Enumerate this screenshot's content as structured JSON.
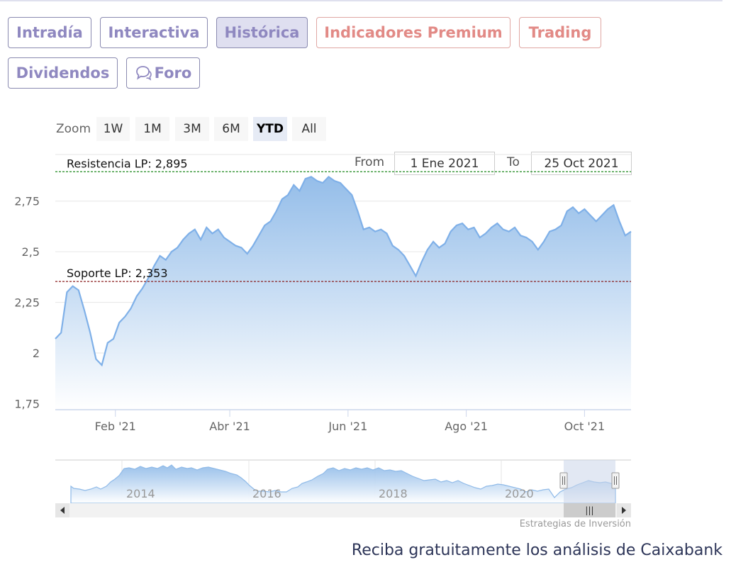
{
  "tabs": [
    {
      "label": "Intradía",
      "active": false,
      "premium": false
    },
    {
      "label": "Interactiva",
      "active": false,
      "premium": false
    },
    {
      "label": "Histórica",
      "active": true,
      "premium": false
    },
    {
      "label": "Indicadores Premium",
      "active": false,
      "premium": true
    },
    {
      "label": "Trading",
      "active": false,
      "premium": true
    },
    {
      "label": "Dividendos",
      "active": false,
      "premium": false
    },
    {
      "label": "Foro",
      "active": false,
      "premium": false,
      "icon": "chat-bubbles-icon"
    }
  ],
  "range_selector": {
    "zoom_label": "Zoom",
    "buttons": [
      "1W",
      "1M",
      "3M",
      "6M",
      "YTD",
      "All"
    ],
    "selected": "YTD",
    "from_label": "From",
    "from_value": "1 Ene 2021",
    "to_label": "To",
    "to_value": "25 Oct 2021"
  },
  "chart_data": {
    "type": "area",
    "title": "",
    "xlabel": "",
    "ylabel": "",
    "y_ticks": [
      "1,75",
      "2",
      "2,25",
      "2,5",
      "2,75"
    ],
    "ylim": [
      1.72,
      2.98
    ],
    "x_ticks": [
      "Feb '21",
      "Abr '21",
      "Jun '21",
      "Ago '21",
      "Oct '21"
    ],
    "x_range": [
      "2021-01-01",
      "2021-10-25"
    ],
    "series": [
      {
        "x": [
          "2021-01-01",
          "2021-01-04",
          "2021-01-07",
          "2021-01-10",
          "2021-01-13",
          "2021-01-16",
          "2021-01-19",
          "2021-01-22",
          "2021-01-25",
          "2021-01-28",
          "2021-01-31",
          "2021-02-03",
          "2021-02-06",
          "2021-02-09",
          "2021-02-12",
          "2021-02-15",
          "2021-02-18",
          "2021-02-21",
          "2021-02-24",
          "2021-02-27",
          "2021-03-02",
          "2021-03-05",
          "2021-03-08",
          "2021-03-11",
          "2021-03-14",
          "2021-03-17",
          "2021-03-20",
          "2021-03-23",
          "2021-03-26",
          "2021-03-29",
          "2021-04-01",
          "2021-04-04",
          "2021-04-07",
          "2021-04-10",
          "2021-04-13",
          "2021-04-16",
          "2021-04-19",
          "2021-04-22",
          "2021-04-25",
          "2021-04-28",
          "2021-05-01",
          "2021-05-04",
          "2021-05-07",
          "2021-05-10",
          "2021-05-13",
          "2021-05-16",
          "2021-05-19",
          "2021-05-22",
          "2021-05-25",
          "2021-05-28",
          "2021-05-31",
          "2021-06-03",
          "2021-06-06",
          "2021-06-09",
          "2021-06-12",
          "2021-06-15",
          "2021-06-18",
          "2021-06-21",
          "2021-06-24",
          "2021-06-27",
          "2021-06-30",
          "2021-07-03",
          "2021-07-06",
          "2021-07-09",
          "2021-07-12",
          "2021-07-15",
          "2021-07-18",
          "2021-07-21",
          "2021-07-24",
          "2021-07-27",
          "2021-07-30",
          "2021-08-02",
          "2021-08-05",
          "2021-08-08",
          "2021-08-11",
          "2021-08-14",
          "2021-08-17",
          "2021-08-20",
          "2021-08-23",
          "2021-08-26",
          "2021-08-29",
          "2021-09-01",
          "2021-09-04",
          "2021-09-07",
          "2021-09-10",
          "2021-09-13",
          "2021-09-16",
          "2021-09-19",
          "2021-09-22",
          "2021-09-25",
          "2021-09-28",
          "2021-10-01",
          "2021-10-04",
          "2021-10-07",
          "2021-10-10",
          "2021-10-13",
          "2021-10-16",
          "2021-10-19",
          "2021-10-22",
          "2021-10-25"
        ],
        "y": [
          2.07,
          2.1,
          2.3,
          2.33,
          2.31,
          2.21,
          2.1,
          1.97,
          1.94,
          2.05,
          2.07,
          2.15,
          2.18,
          2.22,
          2.28,
          2.32,
          2.37,
          2.43,
          2.48,
          2.46,
          2.5,
          2.52,
          2.56,
          2.59,
          2.61,
          2.56,
          2.62,
          2.59,
          2.61,
          2.57,
          2.55,
          2.53,
          2.52,
          2.49,
          2.53,
          2.58,
          2.63,
          2.65,
          2.7,
          2.76,
          2.78,
          2.83,
          2.8,
          2.86,
          2.87,
          2.85,
          2.84,
          2.87,
          2.85,
          2.84,
          2.81,
          2.78,
          2.7,
          2.61,
          2.62,
          2.6,
          2.61,
          2.59,
          2.53,
          2.51,
          2.48,
          2.43,
          2.38,
          2.45,
          2.51,
          2.55,
          2.52,
          2.54,
          2.6,
          2.63,
          2.64,
          2.61,
          2.62,
          2.57,
          2.59,
          2.62,
          2.64,
          2.61,
          2.6,
          2.62,
          2.58,
          2.57,
          2.55,
          2.51,
          2.55,
          2.6,
          2.61,
          2.63,
          2.7,
          2.72,
          2.69,
          2.71,
          2.68,
          2.65,
          2.68,
          2.71,
          2.73,
          2.65,
          2.58,
          2.6
        ]
      }
    ],
    "plot_lines": [
      {
        "label": "Resistencia LP: 2,895",
        "value": 2.895,
        "color": "#1e8a1e"
      },
      {
        "label": "Soporte LP: 2,353",
        "value": 2.353,
        "color": "#8a1e1e"
      }
    ],
    "grid": true,
    "legend": "none",
    "colors": {
      "line": "#7fb0e8",
      "fill_top": "#8fbae8",
      "fill_bottom": "#ffffff"
    }
  },
  "navigator": {
    "year_labels": [
      "2014",
      "2016",
      "2018",
      "2020"
    ],
    "scrollbar_grip": "|||"
  },
  "credit": "Estrategias de Inversión",
  "cta": "Reciba gratuitamente los análisis de Caixabank"
}
